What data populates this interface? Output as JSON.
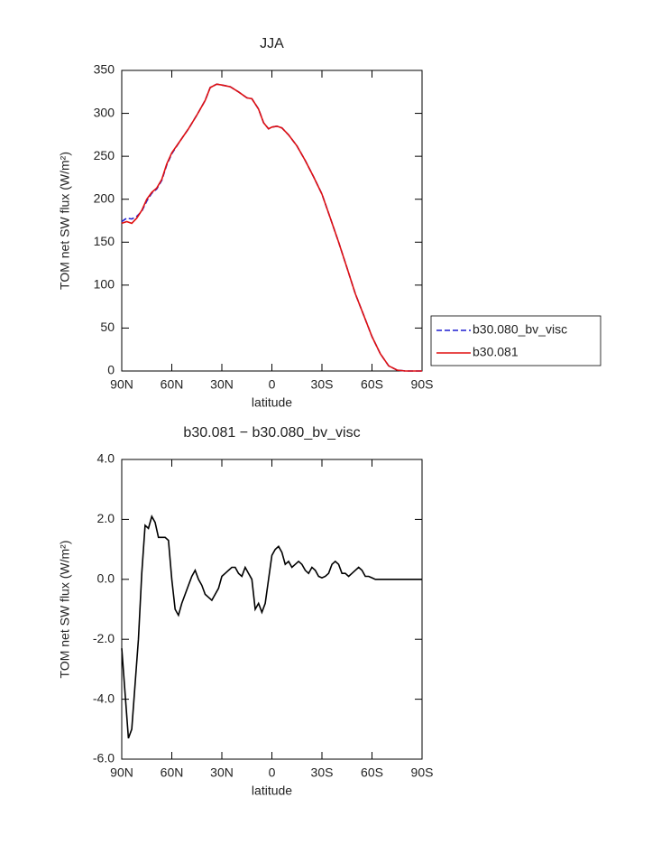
{
  "chart_data": [
    {
      "type": "line",
      "title": "JJA",
      "x_label": "latitude",
      "y_label": "TOM net SW flux (W/m²)",
      "x": [
        90,
        87,
        84,
        81,
        78,
        75,
        72,
        69,
        66,
        63,
        60,
        55,
        50,
        45,
        40,
        37,
        33,
        30,
        25,
        20,
        15,
        12,
        8,
        5,
        2,
        0,
        -3,
        -6,
        -10,
        -15,
        -20,
        -25,
        -30,
        -35,
        -40,
        -45,
        -50,
        -55,
        -60,
        -65,
        -70,
        -75,
        -80,
        -85,
        -90
      ],
      "series": [
        {
          "name": "b30.080_bv_visc",
          "color": "#1f1fd0",
          "dashed": true,
          "values": [
            174,
            178,
            177,
            180,
            186,
            198,
            207,
            212,
            222,
            240,
            253,
            268,
            282,
            298,
            315,
            330,
            334,
            333,
            331,
            325,
            318,
            317,
            305,
            289,
            282,
            284,
            285,
            283,
            275,
            262,
            245,
            226,
            206,
            178,
            150,
            120,
            90,
            65,
            40,
            20,
            6,
            1,
            0,
            0,
            0
          ]
        },
        {
          "name": "b30.081",
          "color": "#e01010",
          "dashed": false,
          "values": [
            172,
            174,
            172,
            178,
            187,
            200,
            208,
            213,
            223,
            241,
            254,
            268,
            282,
            298,
            315,
            330,
            334,
            333,
            331,
            325,
            318,
            317,
            305,
            289,
            282,
            284,
            285,
            283,
            275,
            262,
            245,
            226,
            206,
            178,
            150,
            120,
            90,
            65,
            40,
            20,
            6,
            1,
            0,
            0,
            0
          ]
        }
      ],
      "xlim": [
        90,
        -90
      ],
      "xticks": [
        {
          "value": 90,
          "label": "90N"
        },
        {
          "value": 60,
          "label": "60N"
        },
        {
          "value": 30,
          "label": "30N"
        },
        0,
        {
          "value": -30,
          "label": "30S"
        },
        {
          "value": -60,
          "label": "60S"
        },
        {
          "value": -90,
          "label": "90S"
        }
      ],
      "ylim": [
        0,
        350
      ],
      "yticks": [
        0,
        50,
        100,
        150,
        200,
        250,
        300,
        350
      ],
      "legend": "right"
    },
    {
      "type": "line",
      "title": "b30.081 − b30.080_bv_visc",
      "x_label": "latitude",
      "y_label": "TOM net SW flux (W/m²)",
      "x": [
        90,
        88,
        86,
        84,
        82,
        80,
        78,
        76,
        74,
        72,
        70,
        68,
        66,
        64,
        62,
        60,
        58,
        56,
        54,
        52,
        50,
        48,
        46,
        44,
        42,
        40,
        38,
        36,
        34,
        32,
        30,
        28,
        26,
        24,
        22,
        20,
        18,
        16,
        14,
        12,
        10,
        8,
        6,
        4,
        2,
        0,
        -2,
        -4,
        -6,
        -8,
        -10,
        -12,
        -14,
        -16,
        -18,
        -20,
        -22,
        -24,
        -26,
        -28,
        -30,
        -32,
        -34,
        -36,
        -38,
        -40,
        -42,
        -44,
        -46,
        -48,
        -50,
        -52,
        -54,
        -56,
        -58,
        -60,
        -62,
        -70,
        -80,
        -90
      ],
      "values": [
        -2.3,
        -3.8,
        -5.3,
        -5.0,
        -3.5,
        -2.0,
        0.2,
        1.8,
        1.7,
        2.1,
        1.9,
        1.4,
        1.4,
        1.4,
        1.3,
        0,
        -1.0,
        -1.2,
        -0.8,
        -0.5,
        -0.2,
        0.1,
        0.3,
        0,
        -0.2,
        -0.5,
        -0.6,
        -0.7,
        -0.5,
        -0.3,
        0.1,
        0.2,
        0.3,
        0.4,
        0.4,
        0.2,
        0.1,
        0.4,
        0.2,
        0,
        -1.0,
        -0.8,
        -1.1,
        -0.8,
        0,
        0.8,
        1.0,
        1.1,
        0.9,
        0.5,
        0.6,
        0.4,
        0.5,
        0.6,
        0.5,
        0.3,
        0.2,
        0.4,
        0.3,
        0.1,
        0.05,
        0.1,
        0.2,
        0.5,
        0.6,
        0.5,
        0.2,
        0.2,
        0.1,
        0.2,
        0.3,
        0.4,
        0.3,
        0.1,
        0.1,
        0.05,
        0,
        0,
        0,
        0
      ],
      "color": "#000000",
      "xlim": [
        90,
        -90
      ],
      "xticks": [
        {
          "value": 90,
          "label": "90N"
        },
        {
          "value": 60,
          "label": "60N"
        },
        {
          "value": 30,
          "label": "30N"
        },
        0,
        {
          "value": -30,
          "label": "30S"
        },
        {
          "value": -60,
          "label": "60S"
        },
        {
          "value": -90,
          "label": "90S"
        }
      ],
      "ylim": [
        -6,
        4
      ],
      "yticks": [
        {
          "value": -6,
          "label": "-6.0"
        },
        {
          "value": -4,
          "label": "-4.0"
        },
        {
          "value": -2,
          "label": "-2.0"
        },
        {
          "value": 0,
          "label": "0.0"
        },
        {
          "value": 2,
          "label": "2.0"
        },
        {
          "value": 4,
          "label": "4.0"
        }
      ]
    }
  ]
}
